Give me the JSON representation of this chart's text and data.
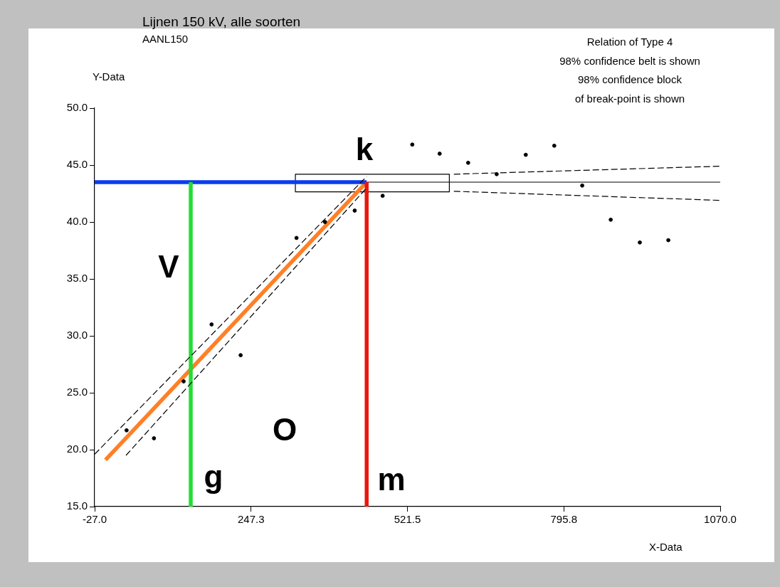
{
  "chart_data": {
    "type": "scatter",
    "title": "Lijnen 150 kV, alle soorten",
    "subtitle": "AANL150",
    "xlabel": "X-Data",
    "ylabel": "Y-Data",
    "xlim": [
      -27,
      1070
    ],
    "ylim": [
      15,
      50
    ],
    "xticks": [
      {
        "value": -27,
        "label": "-27.0"
      },
      {
        "value": 247.3,
        "label": "247.3"
      },
      {
        "value": 521.5,
        "label": "521.5"
      },
      {
        "value": 795.8,
        "label": "795.8"
      },
      {
        "value": 1070,
        "label": "1070.0"
      }
    ],
    "yticks": [
      {
        "value": 15,
        "label": "15.0"
      },
      {
        "value": 20,
        "label": "20.0"
      },
      {
        "value": 25,
        "label": "25.0"
      },
      {
        "value": 30,
        "label": "30.0"
      },
      {
        "value": 35,
        "label": "35.0"
      },
      {
        "value": 40,
        "label": "40.0"
      },
      {
        "value": 45,
        "label": "45.0"
      },
      {
        "value": 50,
        "label": "50.0"
      }
    ],
    "grid": false,
    "marker": "circle",
    "series": [
      {
        "type": "scatter",
        "color": "#000000",
        "x": [
          29,
          77,
          129,
          178,
          229,
          327,
          377,
          429,
          478,
          530,
          578,
          628,
          678,
          729,
          779,
          828,
          878,
          929,
          979
        ],
        "values": [
          21.7,
          21.0,
          26.0,
          31.0,
          28.3,
          38.6,
          40.0,
          41.0,
          42.3,
          46.8,
          46.0,
          45.2,
          44.2,
          45.9,
          46.7,
          43.2,
          40.2,
          38.2,
          38.4
        ]
      },
      {
        "type": "line",
        "color": "#000000",
        "marker": "none",
        "line_style": "dashed",
        "x": [
          -27,
          450
        ],
        "values": [
          19.6,
          44.0
        ]
      },
      {
        "type": "line",
        "color": "#000000",
        "marker": "none",
        "line_style": "dashed",
        "x": [
          28,
          450
        ],
        "values": [
          19.5,
          43.0
        ]
      },
      {
        "type": "line",
        "color": "#000000",
        "marker": "none",
        "line_style": "dashed",
        "x": [
          603,
          1070
        ],
        "values": [
          44.2,
          44.9
        ]
      },
      {
        "type": "line",
        "color": "#000000",
        "marker": "none",
        "line_style": "dashed",
        "x": [
          603,
          1070
        ],
        "values": [
          42.7,
          41.9
        ]
      },
      {
        "type": "line",
        "color": "#000000",
        "marker": "none",
        "line_style": "solid",
        "x": [
          450,
          1070
        ],
        "values": [
          43.5,
          43.5
        ]
      },
      {
        "type": "line",
        "color": "#000000",
        "marker": "none",
        "line_style": "solid",
        "x": [
          325,
          595
        ],
        "values": [
          44.2,
          44.2
        ]
      },
      {
        "type": "line",
        "color": "#000000",
        "marker": "none",
        "line_style": "solid",
        "x": [
          595,
          595
        ],
        "values": [
          44.2,
          42.65
        ]
      },
      {
        "type": "line",
        "color": "#000000",
        "marker": "none",
        "line_style": "solid",
        "x": [
          325,
          595
        ],
        "values": [
          42.65,
          42.65
        ]
      },
      {
        "type": "line",
        "color": "#000000",
        "marker": "none",
        "line_style": "solid",
        "x": [
          325,
          325
        ],
        "values": [
          44.2,
          42.65
        ]
      },
      {
        "type": "line",
        "color": "#ff7f27",
        "marker": "none",
        "line_style": "solid",
        "x": [
          -8,
          450
        ],
        "values": [
          19.1,
          43.5
        ]
      },
      {
        "type": "line",
        "color": "#0a3cf0",
        "marker": "none",
        "line_style": "solid",
        "x": [
          -27,
          450
        ],
        "values": [
          43.5,
          43.5
        ]
      },
      {
        "type": "line",
        "color": "#22dd33",
        "marker": "none",
        "line_style": "solid",
        "x": [
          141.5,
          141.5
        ],
        "values": [
          15,
          43.5
        ]
      },
      {
        "type": "line",
        "color": "#e8170e",
        "marker": "none",
        "line_style": "solid",
        "x": [
          450,
          450
        ],
        "values": [
          15,
          43.5
        ]
      }
    ],
    "annotations": [
      "Relation of Type 4",
      "98% confidence belt is shown",
      "98% confidence block",
      "of break-point is shown",
      "k",
      "V",
      "g",
      "O",
      "m"
    ]
  }
}
